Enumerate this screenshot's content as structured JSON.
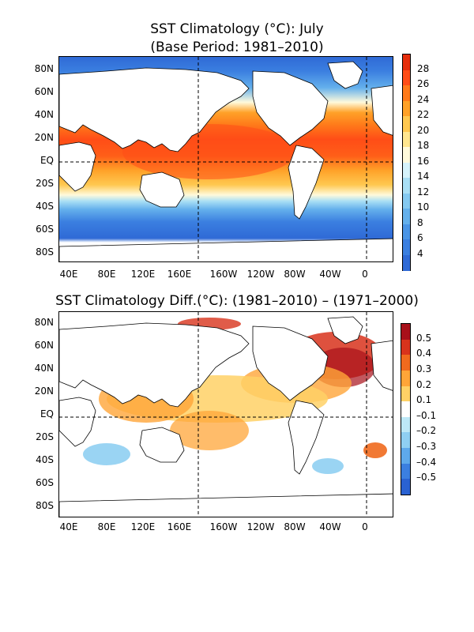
{
  "panels": [
    {
      "title_line1": "SST Climatology (°C): July",
      "title_line2": "(Base Period: 1981–2010)",
      "lat_labels": [
        "80N",
        "60N",
        "40N",
        "20N",
        "EQ",
        "20S",
        "40S",
        "60S",
        "80S"
      ],
      "lon_labels": [
        "40E",
        "80E",
        "120E",
        "160E",
        "160W",
        "120W",
        "80W",
        "40W",
        "0"
      ],
      "colorbar": {
        "labels": [
          "28",
          "26",
          "24",
          "22",
          "20",
          "18",
          "16",
          "14",
          "12",
          "10",
          "8",
          "6",
          "4"
        ],
        "colors": [
          "#e62e0c",
          "#ff4d17",
          "#ff7a1a",
          "#ffa128",
          "#ffc850",
          "#ffe68f",
          "#fffadc",
          "#d6f3fb",
          "#a9dff5",
          "#84c9f1",
          "#64b0ec",
          "#4a95e6",
          "#3b7fe0",
          "#2f6ad6"
        ]
      }
    },
    {
      "title_line1": "SST Climatology Diff.(°C): (1981–2010) – (1971–2000)",
      "lat_labels": [
        "80N",
        "60N",
        "40N",
        "20N",
        "EQ",
        "20S",
        "40S",
        "60S",
        "80S"
      ],
      "lon_labels": [
        "40E",
        "80E",
        "120E",
        "160E",
        "160W",
        "120W",
        "80W",
        "40W",
        "0"
      ],
      "colorbar": {
        "labels": [
          "0.5",
          "0.4",
          "0.3",
          "0.2",
          "0.1",
          "–0.1",
          "–0.2",
          "–0.3",
          "–0.4",
          "–0.5"
        ],
        "colors": [
          "#a8101a",
          "#d8331c",
          "#f06a1e",
          "#ffa538",
          "#ffd166",
          "#ffffff",
          "#bde8f7",
          "#8fcff2",
          "#5ea9eb",
          "#3b7fe0",
          "#2a62d2"
        ]
      }
    }
  ],
  "colors": {
    "land": "#ffffff",
    "ice": "#ffffff",
    "dashed_line": "#000000"
  }
}
